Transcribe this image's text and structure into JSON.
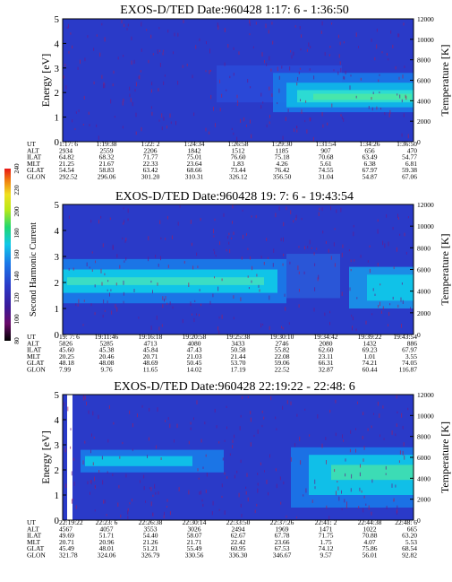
{
  "chart_data": [
    {
      "type": "heatmap",
      "title": "EXOS-D/TED   Date:960428   1:17: 6 - 1:36:50",
      "ylabel": "Energy [eV]",
      "y2label": "Temperature [K]",
      "yticks": [
        "0",
        "1",
        "2",
        "3",
        "4",
        "5"
      ],
      "y2ticks": [
        "0",
        "2000",
        "4000",
        "6000",
        "8000",
        "10000",
        "12000"
      ],
      "ylim": [
        0,
        5
      ],
      "y2lim": [
        0,
        12000
      ],
      "orbit_rows": [
        {
          "label": "UT",
          "values": [
            "1:17: 6",
            "1:19:38",
            "1:22: 2",
            "1:24:34",
            "1:26:58",
            "1:29:30",
            "1:31:54",
            "1:34:26",
            "1:36:50"
          ]
        },
        {
          "label": "ALT",
          "values": [
            "2934",
            "2559",
            "2206",
            "1842",
            "1512",
            "1185",
            "907",
            "656",
            "470"
          ]
        },
        {
          "label": "ILAT",
          "values": [
            "64.82",
            "68.32",
            "71.77",
            "75.01",
            "76.60",
            "75.18",
            "70.68",
            "63.49",
            "54.77"
          ]
        },
        {
          "label": "MLT",
          "values": [
            "21.25",
            "21.67",
            "22.33",
            "23.64",
            "1.83",
            "4.26",
            "5.61",
            "6.38",
            "6.81"
          ]
        },
        {
          "label": "GLAT",
          "values": [
            "54.54",
            "58.83",
            "63.42",
            "68.66",
            "73.44",
            "76.42",
            "74.55",
            "67.97",
            "59.38"
          ]
        },
        {
          "label": "GLON",
          "values": [
            "292.52",
            "296.06",
            "301.20",
            "310.31",
            "326.12",
            "356.50",
            "31.04",
            "54.87",
            "67.06"
          ]
        }
      ]
    },
    {
      "type": "heatmap",
      "title": "EXOS-D/TED   Date:960428   19: 7: 6 - 19:43:54",
      "ylabel": "Second Harmonic Current",
      "y2label": "Temperature [K]",
      "yticks": [
        "0",
        "1",
        "2",
        "3",
        "4",
        "5"
      ],
      "y2ticks": [
        "0",
        "2000",
        "4000",
        "6000",
        "8000",
        "10000",
        "12000"
      ],
      "ylim": [
        0,
        5
      ],
      "y2lim": [
        0,
        12000
      ],
      "orbit_rows": [
        {
          "label": "UT",
          "values": [
            "19: 7: 6",
            "19:11:46",
            "19:16:18",
            "19:20:58",
            "19:25:38",
            "19:30:10",
            "19:34:42",
            "19:39:22",
            "19:43:54"
          ]
        },
        {
          "label": "ALT",
          "values": [
            "5826",
            "5285",
            "4713",
            "4080",
            "3433",
            "2746",
            "2080",
            "1432",
            "886"
          ]
        },
        {
          "label": "ILAT",
          "values": [
            "45.60",
            "45.38",
            "45.84",
            "47.43",
            "50.58",
            "55.82",
            "62.60",
            "69.23",
            "67.97"
          ]
        },
        {
          "label": "MLT",
          "values": [
            "20.25",
            "20.46",
            "20.71",
            "21.03",
            "21.44",
            "22.08",
            "23.11",
            "1.01",
            "3.55"
          ]
        },
        {
          "label": "GLAT",
          "values": [
            "48.18",
            "48.08",
            "48.69",
            "50.45",
            "53.70",
            "59.06",
            "66.31",
            "74.21",
            "74.05"
          ]
        },
        {
          "label": "GLON",
          "values": [
            "7.99",
            "9.76",
            "11.65",
            "14.02",
            "17.19",
            "22.52",
            "32.87",
            "60.44",
            "116.87"
          ]
        }
      ]
    },
    {
      "type": "heatmap",
      "title": "EXOS-D/TED   Date:960428   22:19:22 - 22:48: 6",
      "ylabel": "Energy [eV]",
      "y2label": "Temperature [K]",
      "yticks": [
        "0",
        "1",
        "2",
        "3",
        "4",
        "5"
      ],
      "y2ticks": [
        "0",
        "2000",
        "4000",
        "6000",
        "8000",
        "10000",
        "12000"
      ],
      "ylim": [
        0,
        5
      ],
      "y2lim": [
        0,
        12000
      ],
      "orbit_rows": [
        {
          "label": "UT",
          "values": [
            "22:19:22",
            "22:23: 6",
            "22:26:38",
            "22:30:14",
            "22:33:50",
            "22:37:26",
            "22:41: 2",
            "22:44:38",
            "22:48: 6"
          ]
        },
        {
          "label": "ALT",
          "values": [
            "4567",
            "4057",
            "3553",
            "3026",
            "2494",
            "1969",
            "1471",
            "1022",
            "665"
          ]
        },
        {
          "label": "ILAT",
          "values": [
            "49.69",
            "51.71",
            "54.40",
            "58.07",
            "62.67",
            "67.78",
            "71.75",
            "70.88",
            "63.20"
          ]
        },
        {
          "label": "MLT",
          "values": [
            "20.71",
            "20.96",
            "21.26",
            "21.71",
            "22.42",
            "23.66",
            "1.75",
            "4.07",
            "5.53"
          ]
        },
        {
          "label": "GLAT",
          "values": [
            "45.49",
            "48.01",
            "51.21",
            "55.49",
            "60.95",
            "67.53",
            "74.12",
            "75.86",
            "68.54"
          ]
        },
        {
          "label": "GLON",
          "values": [
            "321.78",
            "324.06",
            "326.79",
            "330.56",
            "336.30",
            "346.67",
            "9.57",
            "56.01",
            "92.82"
          ]
        }
      ]
    }
  ],
  "colorbar": {
    "ticks": [
      "80",
      "100",
      "120",
      "140",
      "160",
      "180",
      "200",
      "220",
      "240"
    ],
    "colors": [
      "#000000",
      "#6a0a6a",
      "#3a1a9a",
      "#2a3ac8",
      "#1a78e8",
      "#10c8e8",
      "#20d870",
      "#b8e818",
      "#f0e020",
      "#f08010",
      "#e81818"
    ]
  }
}
